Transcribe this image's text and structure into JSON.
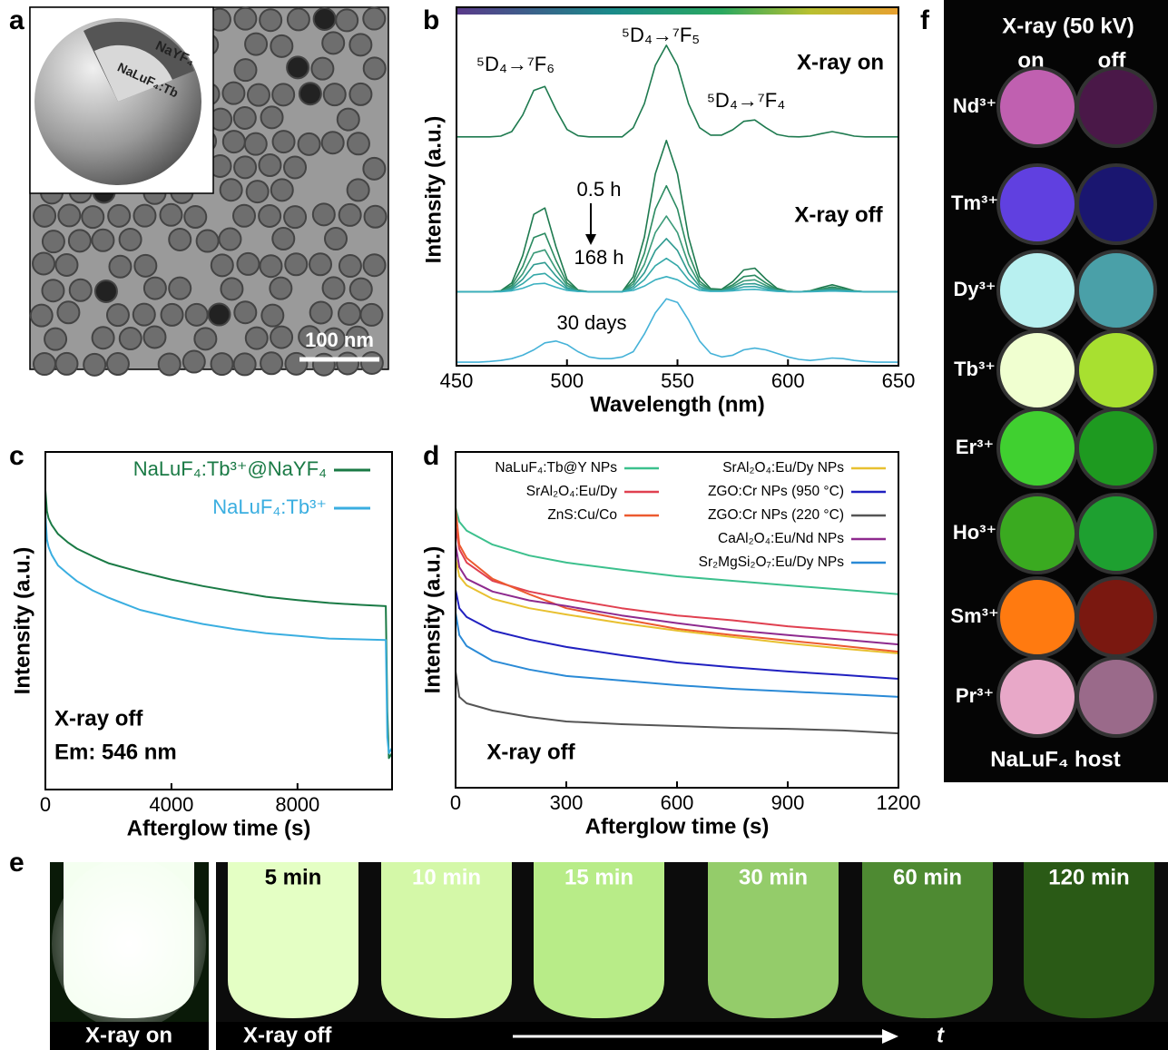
{
  "panel_labels": [
    "a",
    "b",
    "c",
    "d",
    "e",
    "f"
  ],
  "panel_a": {
    "shell_label": "NaYF₄",
    "core_label": "NaLuF₄:Tb",
    "scale_bar": "100 nm"
  },
  "chart_data": [
    {
      "type": "line",
      "xlabel": "Wavelength (nm)",
      "ylabel": "Intensity (a.u.)",
      "annotations": [
        "⁵D₄→⁷F₆",
        "⁵D₄→⁷F₅",
        "⁵D₄→⁷F₄",
        "X-ray on",
        "0.5 h",
        "168 h",
        "X-ray off",
        "30 days"
      ],
      "xlim": [
        450,
        650
      ],
      "xticks": [
        450,
        500,
        550,
        600,
        650
      ],
      "ylim": [
        0,
        100
      ],
      "x": [
        450,
        455,
        460,
        465,
        470,
        475,
        480,
        485,
        490,
        495,
        500,
        505,
        510,
        515,
        520,
        525,
        530,
        535,
        540,
        545,
        550,
        555,
        560,
        565,
        570,
        575,
        580,
        585,
        590,
        595,
        600,
        605,
        610,
        615,
        620,
        625,
        630,
        635,
        640,
        645,
        650
      ],
      "series": [
        {
          "color": "#1e7a4f",
          "values": [
            65,
            65,
            65,
            65,
            65.2,
            66.5,
            71.2,
            78.2,
            79.3,
            72.7,
            67.1,
            65.3,
            65,
            65,
            65,
            65,
            67.6,
            74.4,
            85.3,
            91,
            85.3,
            74.4,
            67.6,
            65.5,
            65.5,
            67,
            69.4,
            69.8,
            67.6,
            65.7,
            65.1,
            65,
            65.2,
            65.9,
            66.5,
            65.9,
            65.2,
            65,
            65,
            65,
            65
          ]
        },
        {
          "color": "#1e7a4f",
          "values": [
            21,
            21,
            21,
            21,
            21.3,
            23.5,
            31.3,
            43,
            44.8,
            33.8,
            24.5,
            21.5,
            21,
            21,
            21,
            21,
            25.3,
            36.5,
            54.5,
            64,
            54.5,
            36.5,
            25.3,
            21.9,
            21.7,
            23.9,
            27.2,
            27.7,
            24.6,
            22,
            21.1,
            21,
            21.3,
            22.2,
            23,
            22.2,
            21.3,
            21,
            21,
            21,
            21
          ]
        },
        {
          "color": "#2a8a60",
          "values": [
            21,
            21,
            21,
            21,
            21.2,
            22.8,
            28.2,
            36.4,
            37.6,
            29.9,
            23.5,
            21.4,
            21,
            21,
            21,
            21,
            24,
            31.9,
            44.5,
            51.1,
            44.5,
            31.9,
            24,
            21.6,
            21.5,
            23,
            25.3,
            25.7,
            23.5,
            21.7,
            21.1,
            21,
            21.2,
            21.8,
            22.4,
            21.8,
            21.2,
            21,
            21,
            21,
            21
          ]
        },
        {
          "color": "#3a9a78",
          "values": [
            21,
            21,
            21,
            21,
            21.1,
            22.3,
            26.1,
            32,
            32.9,
            27.4,
            22.8,
            21.3,
            21,
            21,
            21,
            21,
            23.2,
            28.8,
            37.8,
            42.5,
            37.8,
            28.8,
            23.2,
            21.5,
            21.4,
            22.5,
            24.1,
            24.4,
            22.8,
            21.5,
            21.1,
            21,
            21.2,
            21.6,
            22,
            21.6,
            21.2,
            21,
            21,
            21,
            21
          ]
        },
        {
          "color": "#2f9a90",
          "values": [
            21,
            21,
            21,
            21,
            21.1,
            21.9,
            24.6,
            28.7,
            29.3,
            25.5,
            22.2,
            21.2,
            21,
            21,
            21,
            21,
            22.5,
            26.4,
            32.7,
            36.1,
            32.7,
            26.4,
            22.5,
            21.3,
            21.2,
            22,
            23.2,
            23.3,
            22.3,
            21.4,
            21,
            21,
            21.1,
            21.4,
            21.7,
            21.4,
            21.1,
            21,
            21,
            21,
            21
          ]
        },
        {
          "color": "#35a8a8",
          "values": [
            21,
            21,
            21,
            21,
            21.1,
            21.6,
            23.3,
            25.8,
            26.2,
            23.8,
            21.8,
            21.1,
            21,
            21,
            21,
            21,
            21.9,
            24.4,
            28.4,
            30.5,
            28.4,
            24.4,
            21.9,
            21.2,
            21.2,
            21.6,
            22.4,
            22.5,
            21.8,
            21.2,
            21,
            21,
            21.1,
            21.3,
            21.4,
            21.3,
            21.1,
            21,
            21,
            21,
            21
          ]
        },
        {
          "color": "#3ab0c0",
          "values": [
            21,
            21,
            21,
            21,
            21,
            21.3,
            22,
            23.2,
            23.4,
            22.3,
            21.4,
            21.1,
            21,
            21,
            21,
            21,
            21.4,
            22.6,
            24.4,
            25.3,
            24.4,
            22.6,
            21.4,
            21.1,
            21.1,
            21.3,
            21.6,
            21.7,
            21.4,
            21.1,
            21,
            21,
            21,
            21.1,
            21.2,
            21.1,
            21,
            21,
            21,
            21,
            21
          ]
        },
        {
          "color": "#45b2d8",
          "values": [
            1,
            1,
            1,
            1.2,
            1.5,
            2,
            3,
            4.5,
            6.5,
            7,
            6,
            4,
            2.5,
            2,
            2,
            2.5,
            4,
            9,
            15,
            19,
            18,
            13,
            7,
            3.5,
            2.5,
            3,
            4.5,
            5,
            4.5,
            3.5,
            2.5,
            1.8,
            1.5,
            1.8,
            2.2,
            2,
            1.5,
            1.2,
            1,
            1,
            1
          ]
        }
      ]
    },
    {
      "type": "line",
      "xlabel": "Afterglow time (s)",
      "ylabel": "Intensity (a.u.)",
      "log_y": true,
      "annotations": [
        "X-ray off",
        "Em: 546 nm"
      ],
      "xlim": [
        0,
        11000
      ],
      "xticks": [
        0,
        4000,
        8000
      ],
      "ylim": [
        10,
        30000000
      ],
      "x": [
        0,
        50,
        100,
        200,
        400,
        700,
        1000,
        1500,
        2000,
        3000,
        4000,
        5000,
        6000,
        7000,
        8000,
        9000,
        10000,
        10800,
        10850,
        10900,
        11000
      ],
      "series": [
        {
          "name": "NaLuF₄:Tb³⁺@NaYF₄",
          "color": "#1a7a45",
          "values": [
            5600000.0,
            2200000.0,
            1600000.0,
            1200000.0,
            800000.0,
            560000.0,
            420000.0,
            300000.0,
            220000.0,
            150000.0,
            107000.0,
            80000.0,
            63000.0,
            50000.0,
            43000.0,
            38000.0,
            35000.0,
            33000.0,
            320,
            40,
            50
          ]
        },
        {
          "name": "NaLuF₄:Tb³⁺",
          "color": "#3aaee0",
          "values": [
            2000000.0,
            630000.0,
            450000.0,
            320000.0,
            200000.0,
            140000.0,
            100000.0,
            66000.0,
            48000.0,
            28000.0,
            20000.0,
            15000.0,
            12000.0,
            10000.0,
            8900.0,
            7900.0,
            7600.0,
            7400.0,
            100,
            50,
            63
          ]
        }
      ]
    },
    {
      "type": "line",
      "xlabel": "Afterglow time (s)",
      "ylabel": "Intensity (a.u.)",
      "log_y": true,
      "annotations": [
        "X-ray off"
      ],
      "xlim": [
        0,
        1200
      ],
      "xticks": [
        0,
        300,
        600,
        900,
        1200
      ],
      "ylim": [
        10,
        30000000
      ],
      "x": [
        0,
        10,
        30,
        100,
        200,
        300,
        450,
        600,
        750,
        900,
        1050,
        1200
      ],
      "series": [
        {
          "name": "NaLuF₄:Tb@Y NPs",
          "color": "#3cc08d",
          "values": [
            2500000.0,
            1350000.0,
            910000.0,
            490000.0,
            300000.0,
            220000.0,
            160000.0,
            120000.0,
            98000.0,
            80000.0,
            66000.0,
            54000.0
          ]
        },
        {
          "name": "SrAl₂O₄:Eu/Dy",
          "color": "#e04050",
          "values": [
            1100000.0,
            400000.0,
            220000.0,
            98000.0,
            61000.0,
            44000.0,
            29000.0,
            21000.0,
            17000.0,
            13000.0,
            10700.0,
            8800.0
          ]
        },
        {
          "name": "ZnS:Cu/Co",
          "color": "#ec5a30",
          "values": [
            2500000.0,
            490000.0,
            270000.0,
            107000.0,
            54000.0,
            29000.0,
            18000.0,
            11600.0,
            8800.0,
            6900.0,
            5400.0,
            4200.0
          ]
        },
        {
          "name": "SrAl₂O₄:Eu/Dy NPs",
          "color": "#e8c030",
          "values": [
            270000.0,
            120000.0,
            80000.0,
            44000.0,
            29000.0,
            22000.0,
            15000.0,
            10700.0,
            8100.0,
            6100.0,
            4800.0,
            3900.0
          ]
        },
        {
          "name": "ZGO:Cr NPs (950 °C)",
          "color": "#2020c0",
          "values": [
            66000.0,
            29000.0,
            19600.0,
            10700.0,
            7200.0,
            5200.0,
            3600.0,
            2600.0,
            2100.0,
            1750.0,
            1500.0,
            1260.0
          ]
        },
        {
          "name": "ZGO:Cr NPs (220 °C)",
          "color": "#555555",
          "values": [
            1750.0,
            565,
            425,
            308,
            232,
            190,
            168,
            155,
            143,
            137,
            127,
            112
          ]
        },
        {
          "name": "CaAl₂O₄:Eu/Nd NPs",
          "color": "#8e2a8e",
          "values": [
            490000.0,
            180000.0,
            107000.0,
            61000.0,
            41000.0,
            32000.0,
            21000.0,
            15000.0,
            11000.0,
            8800.0,
            7200.0,
            5800.0
          ]
        },
        {
          "name": "Sr₂MgSi₂O₇:Eu/Dy NPs",
          "color": "#2a8ad6",
          "values": [
            24000.0,
            8800.0,
            5400.0,
            2800.0,
            1900.0,
            1430.0,
            1170.0,
            950,
            810,
            720,
            640,
            565
          ]
        }
      ]
    }
  ],
  "panel_e": {
    "times": [
      "5 min",
      "10 min",
      "15 min",
      "30 min",
      "60 min",
      "120 min"
    ],
    "on_label": "X-ray on",
    "off_label": "X-ray off",
    "arrow_label": "t"
  },
  "panel_f": {
    "title": "X-ray (50 kV)",
    "on": "on",
    "off": "off",
    "ions": [
      "Nd³⁺",
      "Tm³⁺",
      "Dy³⁺",
      "Tb³⁺",
      "Er³⁺",
      "Ho³⁺",
      "Sm³⁺",
      "Pr³⁺"
    ],
    "footer": "NaLuF₄ host"
  }
}
